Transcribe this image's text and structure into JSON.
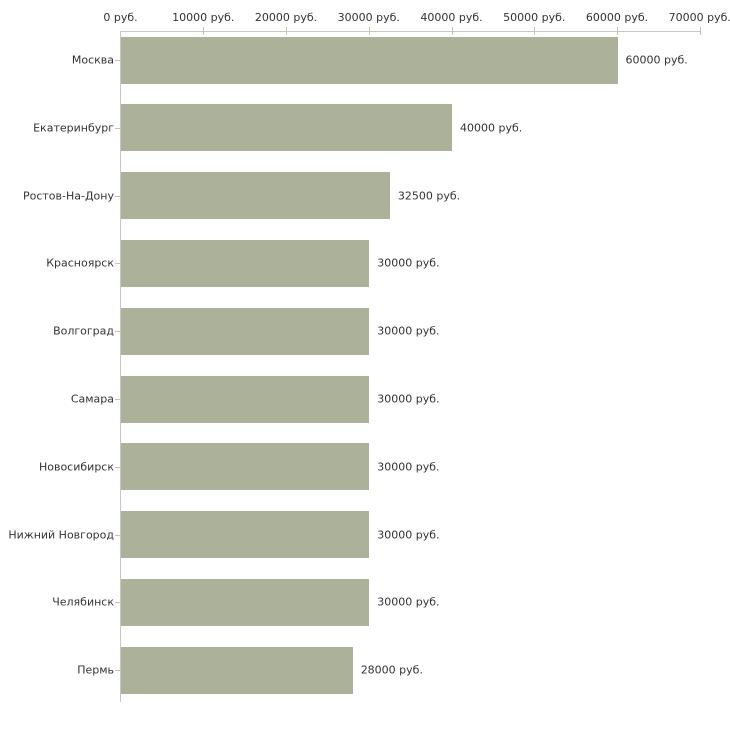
{
  "chart_data": {
    "type": "bar",
    "orientation": "horizontal",
    "title": "",
    "categories": [
      "Москва",
      "Екатеринбург",
      "Ростов-На-Дону",
      "Красноярск",
      "Волгоград",
      "Самара",
      "Новосибирск",
      "Нижний Новгород",
      "Челябинск",
      "Пермь"
    ],
    "values": [
      60000,
      40000,
      32500,
      30000,
      30000,
      30000,
      30000,
      30000,
      30000,
      28000
    ],
    "value_labels": [
      "60000 руб.",
      "40000 руб.",
      "32500 руб.",
      "30000 руб.",
      "30000 руб.",
      "30000 руб.",
      "30000 руб.",
      "30000 руб.",
      "30000 руб.",
      "28000 руб."
    ],
    "unit": "руб.",
    "x_axis": {
      "position": "top",
      "min": 0,
      "max": 70000,
      "tick_interval": 10000,
      "tick_labels": [
        "0 руб.",
        "10000 руб.",
        "20000 руб.",
        "30000 руб.",
        "40000 руб.",
        "50000 руб.",
        "60000 руб.",
        "70000 руб."
      ]
    },
    "grid": false,
    "legend": "none",
    "colors": {
      "bar": "#acb299",
      "axis_line": "#c6c6c6",
      "tick_mark": "#c8c49e",
      "text": "#333333",
      "background": "#ffffff"
    }
  }
}
